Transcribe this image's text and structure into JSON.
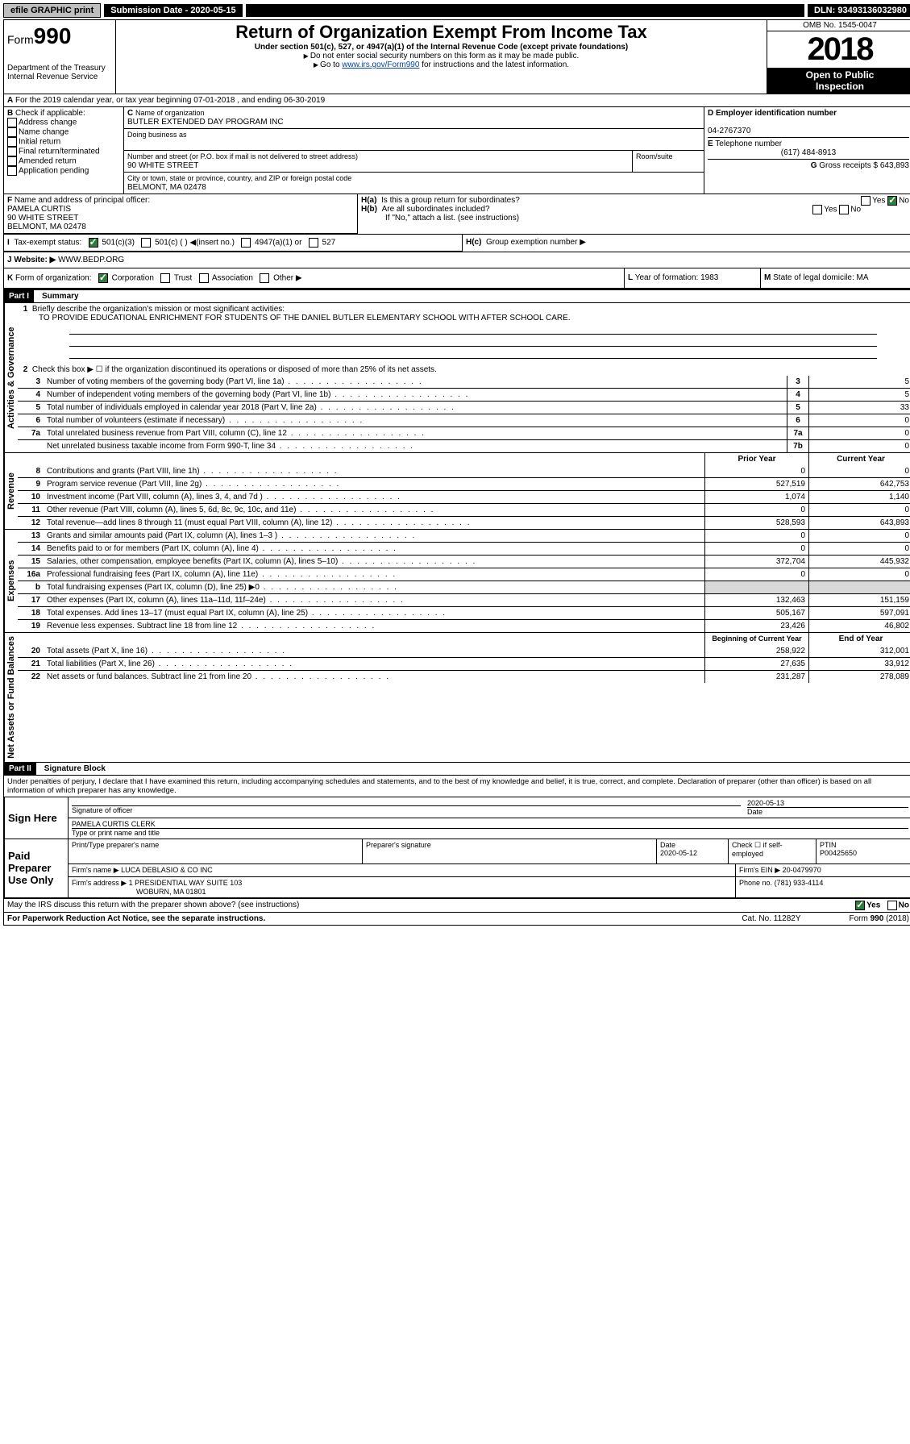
{
  "topbar": {
    "efile": "efile GRAPHIC print",
    "submission_label": "Submission Date - 2020-05-15",
    "dln": "DLN: 93493136032980"
  },
  "header": {
    "form_prefix": "Form",
    "form_number": "990",
    "title": "Return of Organization Exempt From Income Tax",
    "subtitle": "Under section 501(c), 527, or 4947(a)(1) of the Internal Revenue Code (except private foundations)",
    "note1": "Do not enter social security numbers on this form as it may be made public.",
    "note2_pre": "Go to ",
    "note2_link": "www.irs.gov/Form990",
    "note2_post": " for instructions and the latest information.",
    "dept": "Department of the Treasury",
    "irs": "Internal Revenue Service",
    "omb": "OMB No. 1545-0047",
    "year": "2018",
    "open": "Open to Public",
    "inspection": "Inspection"
  },
  "A": {
    "text": "For the 2019 calendar year, or tax year beginning 07-01-2018   , and ending 06-30-2019"
  },
  "B": {
    "label": "Check if applicable:",
    "opts": [
      "Address change",
      "Name change",
      "Initial return",
      "Final return/terminated",
      "Amended return",
      "Application pending"
    ]
  },
  "C": {
    "label": "Name of organization",
    "name": "BUTLER EXTENDED DAY PROGRAM INC",
    "dba_label": "Doing business as",
    "addr_label": "Number and street (or P.O. box if mail is not delivered to street address)",
    "addr": "90 WHITE STREET",
    "room_label": "Room/suite",
    "city_label": "City or town, state or province, country, and ZIP or foreign postal code",
    "city": "BELMONT, MA  02478"
  },
  "D": {
    "label": "Employer identification number",
    "value": "04-2767370"
  },
  "E": {
    "label": "Telephone number",
    "value": "(617) 484-8913"
  },
  "G": {
    "label": "Gross receipts $",
    "value": "643,893"
  },
  "F": {
    "label": "Name and address of principal officer:",
    "name": "PAMELA CURTIS",
    "addr1": "90 WHITE STREET",
    "addr2": "BELMONT, MA  02478"
  },
  "H": {
    "a": "Is this a group return for subordinates?",
    "b": "Are all subordinates included?",
    "b_note": "If \"No,\" attach a list. (see instructions)",
    "c": "Group exemption number ▶",
    "yes": "Yes",
    "no": "No"
  },
  "I": {
    "label": "Tax-exempt status:",
    "c3": "501(c)(3)",
    "c": "501(c) (   ) ◀(insert no.)",
    "a1": "4947(a)(1) or",
    "527": "527"
  },
  "J": {
    "label": "Website: ▶",
    "value": "WWW.BEDP.ORG"
  },
  "K": {
    "label": "Form of organization:",
    "corp": "Corporation",
    "trust": "Trust",
    "assoc": "Association",
    "other": "Other ▶"
  },
  "L": {
    "label": "Year of formation:",
    "value": "1983"
  },
  "M": {
    "label": "State of legal domicile:",
    "value": "MA"
  },
  "partI": {
    "title": "Part I",
    "heading": "Summary",
    "l1_label": "Briefly describe the organization's mission or most significant activities:",
    "l1_value": "TO PROVIDE EDUCATIONAL ENRICHMENT FOR STUDENTS OF THE DANIEL BUTLER ELEMENTARY SCHOOL WITH AFTER SCHOOL CARE.",
    "l2": "Check this box ▶ ☐ if the organization discontinued its operations or disposed of more than 25% of its net assets.",
    "govlabel": "Activities & Governance",
    "revlabel": "Revenue",
    "explabel": "Expenses",
    "netlabel": "Net Assets or Fund Balances",
    "lines_gov": [
      {
        "n": "3",
        "d": "Number of voting members of the governing body (Part VI, line 1a)",
        "box": "3",
        "v": "5"
      },
      {
        "n": "4",
        "d": "Number of independent voting members of the governing body (Part VI, line 1b)",
        "box": "4",
        "v": "5"
      },
      {
        "n": "5",
        "d": "Total number of individuals employed in calendar year 2018 (Part V, line 2a)",
        "box": "5",
        "v": "33"
      },
      {
        "n": "6",
        "d": "Total number of volunteers (estimate if necessary)",
        "box": "6",
        "v": "0"
      },
      {
        "n": "7a",
        "d": "Total unrelated business revenue from Part VIII, column (C), line 12",
        "box": "7a",
        "v": "0"
      },
      {
        "n": "",
        "d": "Net unrelated business taxable income from Form 990-T, line 34",
        "box": "7b",
        "v": "0"
      }
    ],
    "col_prior": "Prior Year",
    "col_current": "Current Year",
    "lines_rev": [
      {
        "n": "8",
        "d": "Contributions and grants (Part VIII, line 1h)",
        "p": "0",
        "c": "0"
      },
      {
        "n": "9",
        "d": "Program service revenue (Part VIII, line 2g)",
        "p": "527,519",
        "c": "642,753"
      },
      {
        "n": "10",
        "d": "Investment income (Part VIII, column (A), lines 3, 4, and 7d )",
        "p": "1,074",
        "c": "1,140"
      },
      {
        "n": "11",
        "d": "Other revenue (Part VIII, column (A), lines 5, 6d, 8c, 9c, 10c, and 11e)",
        "p": "0",
        "c": "0"
      },
      {
        "n": "12",
        "d": "Total revenue—add lines 8 through 11 (must equal Part VIII, column (A), line 12)",
        "p": "528,593",
        "c": "643,893"
      }
    ],
    "lines_exp": [
      {
        "n": "13",
        "d": "Grants and similar amounts paid (Part IX, column (A), lines 1–3 )",
        "p": "0",
        "c": "0"
      },
      {
        "n": "14",
        "d": "Benefits paid to or for members (Part IX, column (A), line 4)",
        "p": "0",
        "c": "0"
      },
      {
        "n": "15",
        "d": "Salaries, other compensation, employee benefits (Part IX, column (A), lines 5–10)",
        "p": "372,704",
        "c": "445,932"
      },
      {
        "n": "16a",
        "d": "Professional fundraising fees (Part IX, column (A), line 11e)",
        "p": "0",
        "c": "0"
      },
      {
        "n": "b",
        "d": "Total fundraising expenses (Part IX, column (D), line 25) ▶0",
        "p": "",
        "c": "",
        "gray": true
      },
      {
        "n": "17",
        "d": "Other expenses (Part IX, column (A), lines 11a–11d, 11f–24e)",
        "p": "132,463",
        "c": "151,159"
      },
      {
        "n": "18",
        "d": "Total expenses. Add lines 13–17 (must equal Part IX, column (A), line 25)",
        "p": "505,167",
        "c": "597,091"
      },
      {
        "n": "19",
        "d": "Revenue less expenses. Subtract line 18 from line 12",
        "p": "23,426",
        "c": "46,802"
      }
    ],
    "col_beg": "Beginning of Current Year",
    "col_end": "End of Year",
    "lines_net": [
      {
        "n": "20",
        "d": "Total assets (Part X, line 16)",
        "p": "258,922",
        "c": "312,001"
      },
      {
        "n": "21",
        "d": "Total liabilities (Part X, line 26)",
        "p": "27,635",
        "c": "33,912"
      },
      {
        "n": "22",
        "d": "Net assets or fund balances. Subtract line 21 from line 20",
        "p": "231,287",
        "c": "278,089"
      }
    ]
  },
  "partII": {
    "title": "Part II",
    "heading": "Signature Block",
    "perjury": "Under penalties of perjury, I declare that I have examined this return, including accompanying schedules and statements, and to the best of my knowledge and belief, it is true, correct, and complete. Declaration of preparer (other than officer) is based on all information of which preparer has any knowledge.",
    "sign_here": "Sign Here",
    "sig_officer": "Signature of officer",
    "sig_date": "2020-05-13",
    "date_label": "Date",
    "officer_name": "PAMELA CURTIS  CLERK",
    "type_name": "Type or print name and title",
    "paid": "Paid Preparer Use Only",
    "print_name_label": "Print/Type preparer's name",
    "prep_sig_label": "Preparer's signature",
    "prep_date_label": "Date",
    "prep_date": "2020-05-12",
    "check_self": "Check ☐ if self-employed",
    "ptin_label": "PTIN",
    "ptin": "P00425650",
    "firm_name_label": "Firm's name    ▶",
    "firm_name": "LUCA DEBLASIO & CO INC",
    "firm_ein_label": "Firm's EIN ▶",
    "firm_ein": "20-0479970",
    "firm_addr_label": "Firm's address ▶",
    "firm_addr1": "1 PRESIDENTIAL WAY SUITE 103",
    "firm_addr2": "WOBURN, MA  01801",
    "phone_label": "Phone no.",
    "phone": "(781) 933-4114",
    "discuss": "May the IRS discuss this return with the preparer shown above? (see instructions)",
    "yes": "Yes",
    "no": "No"
  },
  "footer": {
    "pra": "For Paperwork Reduction Act Notice, see the separate instructions.",
    "cat": "Cat. No. 11282Y",
    "form": "Form 990 (2018)"
  }
}
